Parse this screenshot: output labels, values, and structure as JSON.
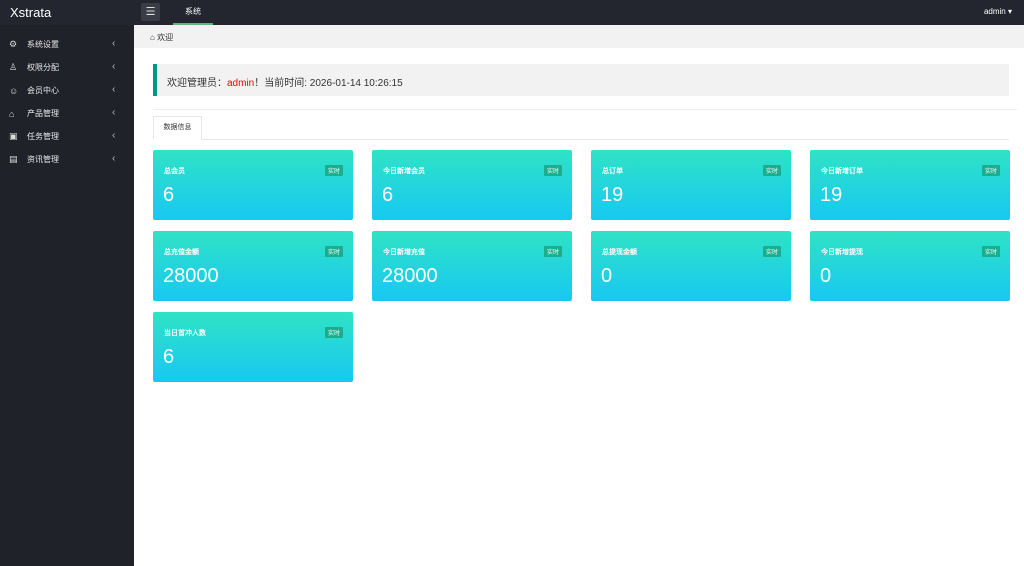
{
  "header": {
    "logo": "Xstrata",
    "tab": "系统",
    "user": "admin ▾"
  },
  "sidebar": {
    "items": [
      {
        "label": "系统设置",
        "icon": "gear-icon"
      },
      {
        "label": "权限分配",
        "icon": "users-icon"
      },
      {
        "label": "会员中心",
        "icon": "user-icon"
      },
      {
        "label": "产品管理",
        "icon": "bank-icon"
      },
      {
        "label": "任务管理",
        "icon": "task-icon"
      },
      {
        "label": "资讯管理",
        "icon": "news-icon"
      }
    ]
  },
  "breadcrumb": {
    "label": "欢迎"
  },
  "welcome": {
    "prefix": "欢迎管理员：",
    "name": "admin",
    "suffix": "！当前时间: 2026-01-14 10:26:15"
  },
  "tab": {
    "label": "数据信息"
  },
  "badge": "实时",
  "cards": [
    {
      "title": "总会员",
      "value": "6"
    },
    {
      "title": "今日新增会员",
      "value": "6"
    },
    {
      "title": "总订单",
      "value": "19"
    },
    {
      "title": "今日新增订单",
      "value": "19"
    },
    {
      "title": "总充值金额",
      "value": "28000"
    },
    {
      "title": "今日新增充值",
      "value": "28000"
    },
    {
      "title": "总提现金额",
      "value": "0"
    },
    {
      "title": "今日新增提现",
      "value": "0"
    },
    {
      "title": "当日首冲人数",
      "value": "6"
    }
  ],
  "colors": {
    "accent": "#009688",
    "card_top": "#2fe3c5",
    "card_bottom": "#18c8f2",
    "sidebar": "#20222a"
  }
}
